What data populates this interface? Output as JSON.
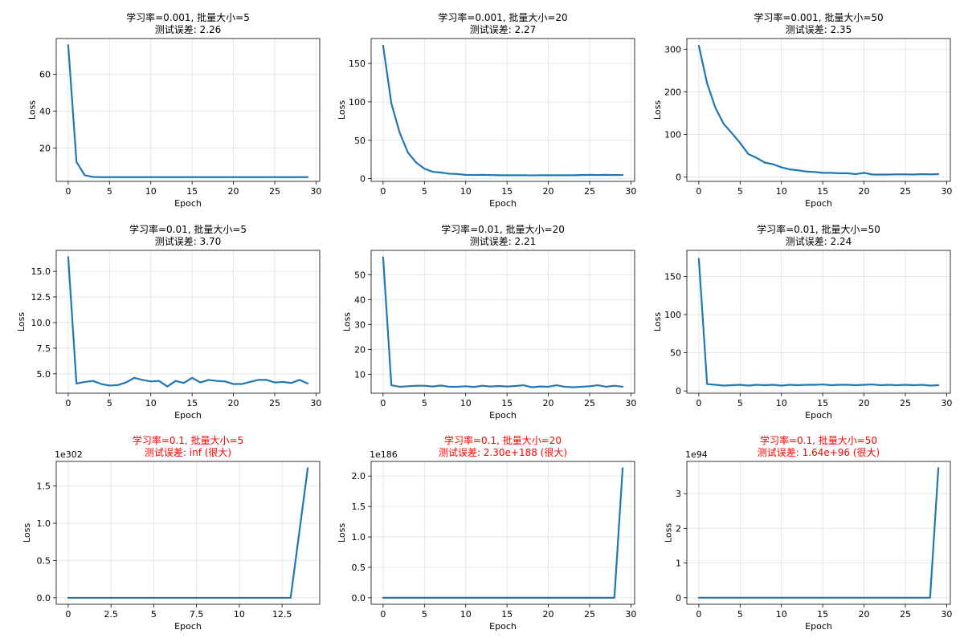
{
  "colors": {
    "line": "#1f77b4",
    "title": "#000000",
    "title_diverged": "#ff0000",
    "grid": "#b0b0b0"
  },
  "chart_data": [
    {
      "type": "line",
      "title_lines": [
        "学习率=0.001, 批量大小=5",
        "测试误差: 2.26"
      ],
      "title_color": "normal",
      "xlabel": "Epoch",
      "ylabel": "Loss",
      "xlim": [
        -1.45,
        30.45
      ],
      "ylim": [
        1.9,
        79.4
      ],
      "xticks": [
        0,
        5,
        10,
        15,
        20,
        25,
        30
      ],
      "yticks": [
        20,
        40,
        60
      ],
      "ytick_labels": [
        "20",
        "40",
        "60"
      ],
      "offset_text": "",
      "grid": true,
      "series": [
        {
          "x": [
            0,
            1,
            2,
            3,
            4,
            5,
            6,
            7,
            8,
            9,
            10,
            11,
            12,
            13,
            14,
            15,
            16,
            17,
            18,
            19,
            20,
            21,
            22,
            23,
            24,
            25,
            26,
            27,
            28,
            29
          ],
          "values": [
            75.8,
            12.5,
            5.2,
            4.3,
            4.2,
            4.2,
            4.2,
            4.2,
            4.2,
            4.2,
            4.2,
            4.2,
            4.2,
            4.2,
            4.2,
            4.2,
            4.2,
            4.2,
            4.2,
            4.2,
            4.2,
            4.2,
            4.2,
            4.2,
            4.2,
            4.2,
            4.2,
            4.2,
            4.2,
            4.2
          ]
        }
      ]
    },
    {
      "type": "line",
      "title_lines": [
        "学习率=0.001, 批量大小=20",
        "测试误差: 2.27"
      ],
      "title_color": "normal",
      "xlabel": "Epoch",
      "ylabel": "Loss",
      "xlim": [
        -1.45,
        30.45
      ],
      "ylim": [
        -3.5,
        182.5
      ],
      "xticks": [
        0,
        5,
        10,
        15,
        20,
        25,
        30
      ],
      "yticks": [
        0,
        50,
        100,
        150
      ],
      "ytick_labels": [
        "0",
        "50",
        "100",
        "150"
      ],
      "offset_text": "",
      "grid": true,
      "series": [
        {
          "x": [
            0,
            1,
            2,
            3,
            4,
            5,
            6,
            7,
            8,
            9,
            10,
            11,
            12,
            13,
            14,
            15,
            16,
            17,
            18,
            19,
            20,
            21,
            22,
            23,
            24,
            25,
            26,
            27,
            28,
            29
          ],
          "values": [
            173,
            98,
            60,
            34,
            21,
            13,
            9,
            8,
            6.5,
            6,
            5,
            4.8,
            5,
            4.8,
            4.5,
            4.5,
            4.5,
            4.5,
            4.3,
            4.5,
            4.5,
            4.5,
            4.5,
            4.5,
            4.7,
            5,
            4.8,
            5,
            4.7,
            4.8
          ]
        }
      ]
    },
    {
      "type": "line",
      "title_lines": [
        "学习率=0.001, 批量大小=50",
        "测试误差: 2.35"
      ],
      "title_color": "normal",
      "xlabel": "Epoch",
      "ylabel": "Loss",
      "xlim": [
        -1.45,
        30.45
      ],
      "ylim": [
        -10,
        325
      ],
      "xticks": [
        0,
        5,
        10,
        15,
        20,
        25,
        30
      ],
      "yticks": [
        0,
        100,
        200,
        300
      ],
      "ytick_labels": [
        "0",
        "100",
        "200",
        "300"
      ],
      "offset_text": "",
      "grid": true,
      "series": [
        {
          "x": [
            0,
            1,
            2,
            3,
            4,
            5,
            6,
            7,
            8,
            9,
            10,
            11,
            12,
            13,
            14,
            15,
            16,
            17,
            18,
            19,
            20,
            21,
            22,
            23,
            24,
            25,
            26,
            27,
            28,
            29
          ],
          "values": [
            308,
            220,
            163,
            125,
            103,
            80,
            54,
            45,
            34,
            30,
            23,
            18,
            16,
            13,
            12,
            10,
            10,
            9,
            9,
            7,
            10,
            6,
            6,
            6,
            6.5,
            6.5,
            6,
            7,
            6.5,
            7
          ]
        }
      ]
    },
    {
      "type": "line",
      "title_lines": [
        "学习率=0.01, 批量大小=5",
        "测试误差: 3.70"
      ],
      "title_color": "normal",
      "xlabel": "Epoch",
      "ylabel": "Loss",
      "xlim": [
        -1.45,
        30.45
      ],
      "ylim": [
        3.1,
        17.05
      ],
      "xticks": [
        0,
        5,
        10,
        15,
        20,
        25,
        30
      ],
      "yticks": [
        5.0,
        7.5,
        10.0,
        12.5,
        15.0
      ],
      "ytick_labels": [
        "5.0",
        "7.5",
        "10.0",
        "12.5",
        "15.0"
      ],
      "offset_text": "",
      "grid": true,
      "series": [
        {
          "x": [
            0,
            1,
            2,
            3,
            4,
            5,
            6,
            7,
            8,
            9,
            10,
            11,
            12,
            13,
            14,
            15,
            16,
            17,
            18,
            19,
            20,
            21,
            22,
            23,
            24,
            25,
            26,
            27,
            28,
            29
          ],
          "values": [
            16.4,
            4.05,
            4.2,
            4.3,
            4.0,
            3.85,
            3.9,
            4.15,
            4.6,
            4.4,
            4.25,
            4.3,
            3.75,
            4.3,
            4.1,
            4.6,
            4.15,
            4.4,
            4.3,
            4.25,
            4.0,
            4.0,
            4.2,
            4.4,
            4.4,
            4.15,
            4.2,
            4.1,
            4.4,
            4.05
          ]
        }
      ]
    },
    {
      "type": "line",
      "title_lines": [
        "学习率=0.01, 批量大小=20",
        "测试误差: 2.21"
      ],
      "title_color": "normal",
      "xlabel": "Epoch",
      "ylabel": "Loss",
      "xlim": [
        -1.45,
        30.45
      ],
      "ylim": [
        2.4,
        59.75
      ],
      "xticks": [
        0,
        5,
        10,
        15,
        20,
        25,
        30
      ],
      "yticks": [
        10,
        20,
        30,
        40,
        50
      ],
      "ytick_labels": [
        "10",
        "20",
        "30",
        "40",
        "50"
      ],
      "offset_text": "",
      "grid": true,
      "series": [
        {
          "x": [
            0,
            1,
            2,
            3,
            4,
            5,
            6,
            7,
            8,
            9,
            10,
            11,
            12,
            13,
            14,
            15,
            16,
            17,
            18,
            19,
            20,
            21,
            22,
            23,
            24,
            25,
            26,
            27,
            28,
            29
          ],
          "values": [
            57,
            5.6,
            5.0,
            5.2,
            5.4,
            5.4,
            5.1,
            5.5,
            5.0,
            5.0,
            5.2,
            4.9,
            5.4,
            5.1,
            5.3,
            5.1,
            5.3,
            5.6,
            4.8,
            5.1,
            5.0,
            5.6,
            5.0,
            4.8,
            5.0,
            5.2,
            5.6,
            5.0,
            5.4,
            5.0
          ]
        }
      ]
    },
    {
      "type": "line",
      "title_lines": [
        "学习率=0.01, 批量大小=50",
        "测试误差: 2.24"
      ],
      "title_color": "normal",
      "xlabel": "Epoch",
      "ylabel": "Loss",
      "xlim": [
        -1.45,
        30.45
      ],
      "ylim": [
        -3,
        184
      ],
      "xticks": [
        0,
        5,
        10,
        15,
        20,
        25,
        30
      ],
      "yticks": [
        0,
        50,
        100,
        150
      ],
      "ytick_labels": [
        "0",
        "50",
        "100",
        "150"
      ],
      "offset_text": "",
      "grid": true,
      "series": [
        {
          "x": [
            0,
            1,
            2,
            3,
            4,
            5,
            6,
            7,
            8,
            9,
            10,
            11,
            12,
            13,
            14,
            15,
            16,
            17,
            18,
            19,
            20,
            21,
            22,
            23,
            24,
            25,
            26,
            27,
            28,
            29
          ],
          "values": [
            173,
            9,
            8,
            7,
            7.5,
            8,
            7,
            8,
            7.5,
            8,
            7,
            8,
            7.5,
            8,
            8,
            8.5,
            7.5,
            8,
            8,
            7.5,
            8,
            8.5,
            7.5,
            8,
            7.5,
            8,
            7.5,
            8,
            7,
            7.5
          ]
        }
      ]
    },
    {
      "type": "line",
      "title_lines": [
        "学习率=0.1, 批量大小=5",
        "测试误差: inf (很大)"
      ],
      "title_color": "diverged",
      "xlabel": "Epoch",
      "ylabel": "Loss",
      "xlim": [
        -0.7,
        14.7
      ],
      "ylim": [
        -0.087,
        1.83
      ],
      "xticks": [
        0,
        2.5,
        5,
        7.5,
        10,
        12.5
      ],
      "yticks": [
        0,
        0.5,
        1.0,
        1.5
      ],
      "ytick_labels": [
        "0.0",
        "0.5",
        "1.0",
        "1.5"
      ],
      "offset_text": "1e302",
      "grid": true,
      "series": [
        {
          "x": [
            0,
            1,
            2,
            3,
            4,
            5,
            6,
            7,
            8,
            9,
            10,
            11,
            12,
            13,
            14
          ],
          "values": [
            0,
            0,
            0,
            0,
            0,
            0,
            0,
            0,
            0,
            0,
            0,
            0,
            0,
            0,
            1.74
          ]
        }
      ]
    },
    {
      "type": "line",
      "title_lines": [
        "学习率=0.1, 批量大小=20",
        "测试误差: 2.30e+188 (很大)"
      ],
      "title_color": "diverged",
      "xlabel": "Epoch",
      "ylabel": "Loss",
      "xlim": [
        -1.45,
        30.45
      ],
      "ylim": [
        -0.107,
        2.24
      ],
      "xticks": [
        0,
        5,
        10,
        15,
        20,
        25,
        30
      ],
      "yticks": [
        0,
        0.5,
        1.0,
        1.5,
        2.0
      ],
      "ytick_labels": [
        "0.0",
        "0.5",
        "1.0",
        "1.5",
        "2.0"
      ],
      "offset_text": "1e186",
      "grid": true,
      "series": [
        {
          "x": [
            0,
            1,
            2,
            3,
            4,
            5,
            6,
            7,
            8,
            9,
            10,
            11,
            12,
            13,
            14,
            15,
            16,
            17,
            18,
            19,
            20,
            21,
            22,
            23,
            24,
            25,
            26,
            27,
            28,
            29
          ],
          "values": [
            0,
            0,
            0,
            0,
            0,
            0,
            0,
            0,
            0,
            0,
            0,
            0,
            0,
            0,
            0,
            0,
            0,
            0,
            0,
            0,
            0,
            0,
            0,
            0,
            0,
            0,
            0,
            0,
            0,
            2.13
          ]
        }
      ]
    },
    {
      "type": "line",
      "title_lines": [
        "学习率=0.1, 批量大小=50",
        "测试误差: 1.64e+96 (很大)"
      ],
      "title_color": "diverged",
      "xlabel": "Epoch",
      "ylabel": "Loss",
      "xlim": [
        -1.45,
        30.45
      ],
      "ylim": [
        -0.19,
        3.93
      ],
      "xticks": [
        0,
        5,
        10,
        15,
        20,
        25,
        30
      ],
      "yticks": [
        0,
        1,
        2,
        3
      ],
      "ytick_labels": [
        "0",
        "1",
        "2",
        "3"
      ],
      "offset_text": "1e94",
      "grid": true,
      "series": [
        {
          "x": [
            0,
            1,
            2,
            3,
            4,
            5,
            6,
            7,
            8,
            9,
            10,
            11,
            12,
            13,
            14,
            15,
            16,
            17,
            18,
            19,
            20,
            21,
            22,
            23,
            24,
            25,
            26,
            27,
            28,
            29
          ],
          "values": [
            0,
            0,
            0,
            0,
            0,
            0,
            0,
            0,
            0,
            0,
            0,
            0,
            0,
            0,
            0,
            0,
            0,
            0,
            0,
            0,
            0,
            0,
            0,
            0,
            0,
            0,
            0,
            0,
            0,
            3.74
          ]
        }
      ]
    }
  ]
}
